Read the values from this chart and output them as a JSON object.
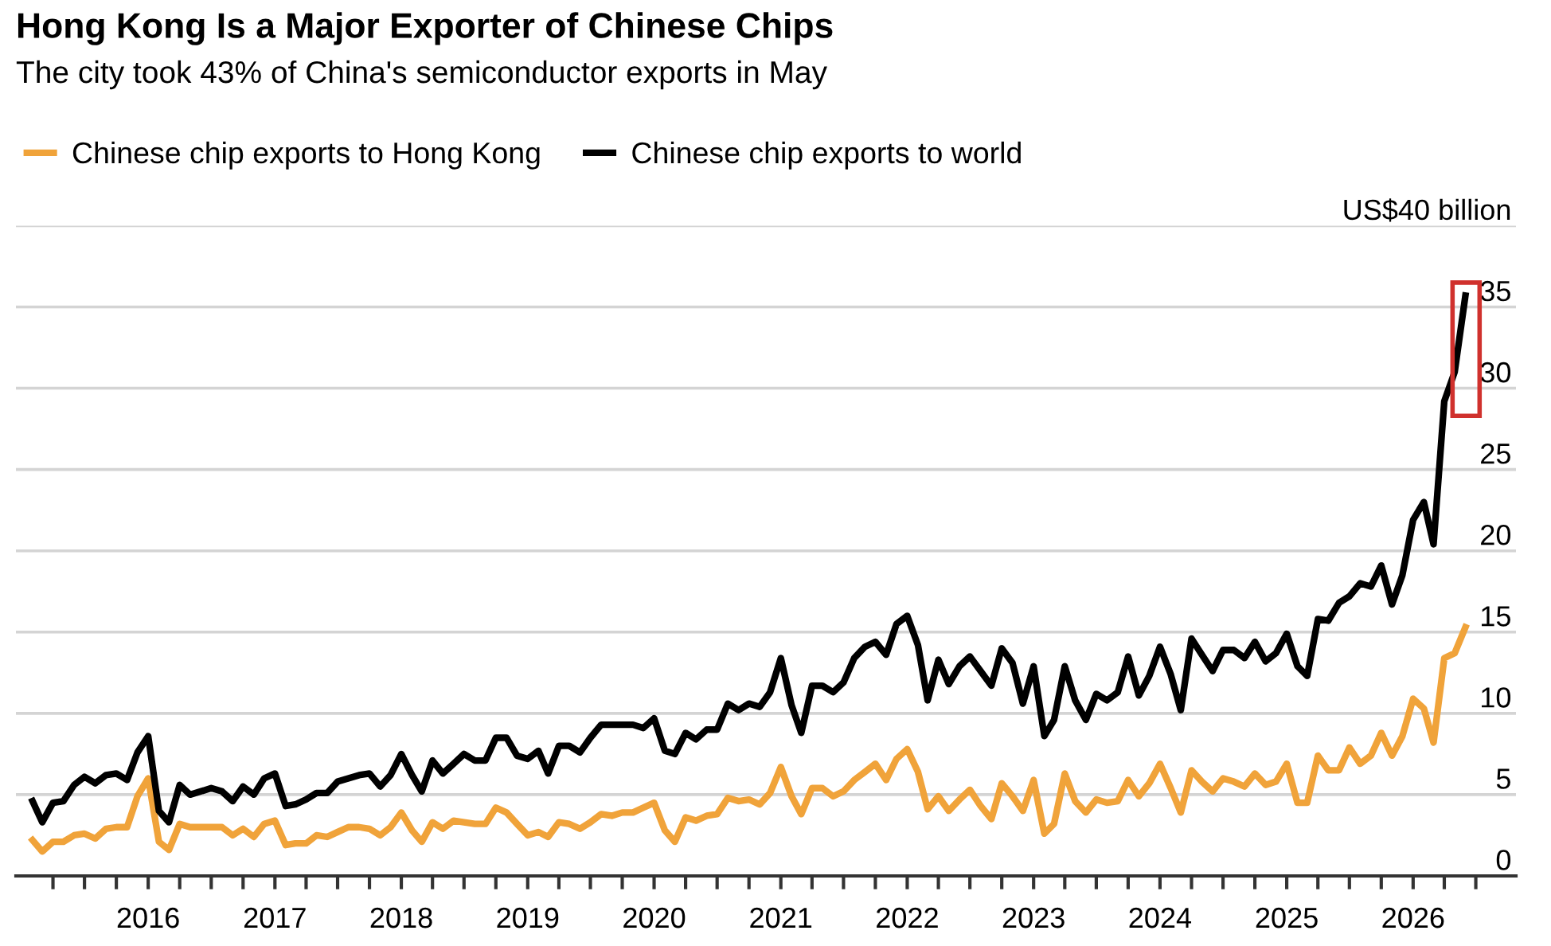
{
  "chart_data": {
    "type": "line",
    "title": "Hong Kong Is a Major Exporter of Chinese Chips",
    "subtitle": "The city took 43% of China's semiconductor exports in May",
    "x": [
      "2015-02",
      "2015-03",
      "2015-04",
      "2015-05",
      "2015-06",
      "2015-07",
      "2015-08",
      "2015-09",
      "2015-10",
      "2015-11",
      "2015-12",
      "2016-01",
      "2016-02",
      "2016-03",
      "2016-04",
      "2016-05",
      "2016-06",
      "2016-07",
      "2016-08",
      "2016-09",
      "2016-10",
      "2016-11",
      "2016-12",
      "2017-01",
      "2017-02",
      "2017-03",
      "2017-04",
      "2017-05",
      "2017-06",
      "2017-07",
      "2017-08",
      "2017-09",
      "2017-10",
      "2017-11",
      "2017-12",
      "2018-01",
      "2018-02",
      "2018-03",
      "2018-04",
      "2018-05",
      "2018-06",
      "2018-07",
      "2018-08",
      "2018-09",
      "2018-10",
      "2018-11",
      "2018-12",
      "2019-01",
      "2019-02",
      "2019-03",
      "2019-04",
      "2019-05",
      "2019-06",
      "2019-07",
      "2019-08",
      "2019-09",
      "2019-10",
      "2019-11",
      "2019-12",
      "2020-01",
      "2020-02",
      "2020-03",
      "2020-04",
      "2020-05",
      "2020-06",
      "2020-07",
      "2020-08",
      "2020-09",
      "2020-10",
      "2020-11",
      "2020-12",
      "2021-01",
      "2021-02",
      "2021-03",
      "2021-04",
      "2021-05",
      "2021-06",
      "2021-07",
      "2021-08",
      "2021-09",
      "2021-10",
      "2021-11",
      "2021-12",
      "2022-01",
      "2022-02",
      "2022-03",
      "2022-04",
      "2022-05",
      "2022-06",
      "2022-07",
      "2022-08",
      "2022-09",
      "2022-10",
      "2022-11",
      "2022-12",
      "2023-01",
      "2023-02",
      "2023-03",
      "2023-04",
      "2023-05",
      "2023-06",
      "2023-07",
      "2023-08",
      "2023-09",
      "2023-10",
      "2023-11",
      "2023-12",
      "2024-01",
      "2024-02",
      "2024-03",
      "2024-04",
      "2024-05",
      "2024-06",
      "2024-07",
      "2024-08",
      "2024-09",
      "2024-10",
      "2024-11",
      "2024-12",
      "2025-01",
      "2025-02",
      "2025-03",
      "2025-04",
      "2025-05",
      "2025-06",
      "2025-07",
      "2025-08",
      "2025-09",
      "2025-10",
      "2025-11",
      "2025-12",
      "2026-01",
      "2026-02",
      "2026-03",
      "2026-04",
      "2026-05",
      "2026-06"
    ],
    "series": [
      {
        "name": "Chinese chip exports to Hong Kong",
        "color": "#f0a33a",
        "values": [
          2.2,
          1.5,
          2.1,
          2.1,
          2.5,
          2.6,
          2.3,
          2.9,
          3.0,
          3.0,
          4.9,
          6.0,
          2.1,
          1.6,
          3.2,
          3.0,
          3.0,
          3.0,
          3.0,
          2.5,
          2.9,
          2.4,
          3.2,
          3.4,
          1.9,
          2.0,
          2.0,
          2.5,
          2.4,
          2.7,
          3.0,
          3.0,
          2.9,
          2.5,
          3.0,
          3.9,
          2.8,
          2.1,
          3.3,
          2.9,
          3.4,
          3.3,
          3.2,
          3.2,
          4.2,
          3.9,
          3.2,
          2.5,
          2.7,
          2.4,
          3.3,
          3.2,
          2.9,
          3.3,
          3.8,
          3.7,
          3.9,
          3.9,
          4.2,
          4.5,
          2.8,
          2.1,
          3.6,
          3.4,
          3.7,
          3.8,
          4.8,
          4.6,
          4.7,
          4.4,
          5.1,
          6.7,
          4.9,
          3.8,
          5.4,
          5.4,
          4.9,
          5.2,
          5.9,
          6.4,
          6.9,
          5.9,
          7.2,
          7.8,
          6.4,
          4.1,
          4.9,
          4.0,
          4.7,
          5.3,
          4.3,
          3.5,
          5.7,
          4.9,
          4.0,
          5.9,
          2.6,
          3.2,
          6.3,
          4.6,
          3.9,
          4.7,
          4.5,
          4.6,
          5.9,
          4.9,
          5.7,
          6.9,
          5.4,
          3.9,
          6.5,
          5.8,
          5.2,
          6.0,
          5.8,
          5.5,
          6.3,
          5.6,
          5.8,
          6.9,
          4.5,
          4.5,
          7.4,
          6.5,
          6.5,
          7.9,
          6.9,
          7.4,
          8.8,
          7.4,
          8.6,
          10.9,
          10.3,
          8.2,
          13.4,
          13.7,
          15.3
        ]
      },
      {
        "name": "Chinese chip exports to world",
        "color": "#000000",
        "values": [
          4.6,
          3.3,
          4.5,
          4.6,
          5.6,
          6.1,
          5.7,
          6.2,
          6.3,
          5.9,
          7.6,
          8.6,
          4.0,
          3.3,
          5.6,
          5.0,
          5.2,
          5.4,
          5.2,
          4.6,
          5.5,
          5.0,
          6.0,
          6.3,
          4.3,
          4.4,
          4.7,
          5.1,
          5.1,
          5.8,
          6.0,
          6.2,
          6.3,
          5.5,
          6.2,
          7.5,
          6.2,
          5.2,
          7.1,
          6.3,
          6.9,
          7.5,
          7.1,
          7.1,
          8.5,
          8.5,
          7.4,
          7.2,
          7.7,
          6.3,
          8.0,
          8.0,
          7.6,
          8.5,
          9.3,
          9.3,
          9.3,
          9.3,
          9.1,
          9.7,
          7.7,
          7.5,
          8.8,
          8.4,
          9.0,
          9.0,
          10.6,
          10.2,
          10.6,
          10.4,
          11.3,
          13.4,
          10.5,
          8.8,
          11.7,
          11.7,
          11.3,
          11.9,
          13.4,
          14.1,
          14.4,
          13.6,
          15.5,
          16.0,
          14.2,
          10.8,
          13.3,
          11.8,
          12.9,
          13.5,
          12.6,
          11.7,
          14.0,
          13.1,
          10.6,
          12.9,
          8.6,
          9.6,
          12.9,
          10.8,
          9.6,
          11.2,
          10.8,
          11.3,
          13.5,
          11.1,
          12.3,
          14.1,
          12.4,
          10.2,
          14.6,
          13.6,
          12.6,
          13.9,
          13.9,
          13.4,
          14.4,
          13.2,
          13.7,
          14.9,
          12.9,
          12.3,
          15.8,
          15.7,
          16.8,
          17.2,
          18.0,
          17.8,
          19.1,
          16.7,
          18.5,
          21.9,
          23.0,
          20.4,
          29.2,
          31.0,
          35.7
        ]
      }
    ],
    "xlim": [
      "2014-12-15",
      "2026-10-25"
    ],
    "xticks": [
      {
        "value": "2015-04",
        "label": null
      },
      {
        "value": "2015-07",
        "label": null
      },
      {
        "value": "2015-10",
        "label": null
      },
      {
        "value": "2016-01",
        "label": "2016"
      },
      {
        "value": "2016-04",
        "label": null
      },
      {
        "value": "2016-07",
        "label": null
      },
      {
        "value": "2016-10",
        "label": null
      },
      {
        "value": "2017-01",
        "label": "2017"
      },
      {
        "value": "2017-04",
        "label": null
      },
      {
        "value": "2017-07",
        "label": null
      },
      {
        "value": "2017-10",
        "label": null
      },
      {
        "value": "2018-01",
        "label": "2018"
      },
      {
        "value": "2018-04",
        "label": null
      },
      {
        "value": "2018-07",
        "label": null
      },
      {
        "value": "2018-10",
        "label": null
      },
      {
        "value": "2019-01",
        "label": "2019"
      },
      {
        "value": "2019-04",
        "label": null
      },
      {
        "value": "2019-07",
        "label": null
      },
      {
        "value": "2019-10",
        "label": null
      },
      {
        "value": "2020-01",
        "label": "2020"
      },
      {
        "value": "2020-04",
        "label": null
      },
      {
        "value": "2020-07",
        "label": null
      },
      {
        "value": "2020-10",
        "label": null
      },
      {
        "value": "2021-01",
        "label": "2021"
      },
      {
        "value": "2021-04",
        "label": null
      },
      {
        "value": "2021-07",
        "label": null
      },
      {
        "value": "2021-10",
        "label": null
      },
      {
        "value": "2022-01",
        "label": "2022"
      },
      {
        "value": "2022-04",
        "label": null
      },
      {
        "value": "2022-07",
        "label": null
      },
      {
        "value": "2022-10",
        "label": null
      },
      {
        "value": "2023-01",
        "label": "2023"
      },
      {
        "value": "2023-04",
        "label": null
      },
      {
        "value": "2023-07",
        "label": null
      },
      {
        "value": "2023-10",
        "label": null
      },
      {
        "value": "2024-01",
        "label": "2024"
      },
      {
        "value": "2024-04",
        "label": null
      },
      {
        "value": "2024-07",
        "label": null
      },
      {
        "value": "2024-10",
        "label": null
      },
      {
        "value": "2025-01",
        "label": "2025"
      },
      {
        "value": "2025-04",
        "label": null
      },
      {
        "value": "2025-07",
        "label": null
      },
      {
        "value": "2025-10",
        "label": null
      },
      {
        "value": "2026-01",
        "label": "2026"
      },
      {
        "value": "2026-04",
        "label": null
      },
      {
        "value": "2026-07",
        "label": null
      }
    ],
    "ylim": [
      0,
      40
    ],
    "yticks": [
      0,
      5,
      10,
      15,
      20,
      25,
      30,
      35,
      {
        "value": 40,
        "label": "US$40 billion"
      }
    ],
    "grid": "y",
    "legend": "top left",
    "line_style": "solid",
    "marker": "none"
  }
}
